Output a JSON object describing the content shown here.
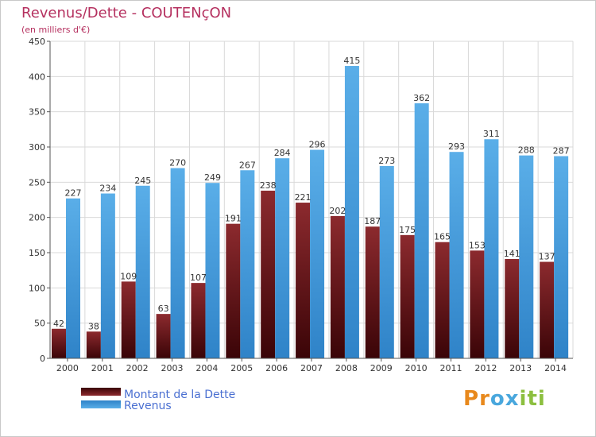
{
  "chart_data": {
    "type": "bar",
    "title": "Revenus/Dette - COUTENçON",
    "subtitle": "(en milliers d'€)",
    "categories": [
      "2000",
      "2001",
      "2002",
      "2003",
      "2004",
      "2005",
      "2006",
      "2007",
      "2008",
      "2009",
      "2010",
      "2011",
      "2012",
      "2013",
      "2014"
    ],
    "series": [
      {
        "name": "Montant de la Dette",
        "values": [
          42,
          38,
          109,
          63,
          107,
          191,
          238,
          221,
          202,
          187,
          175,
          165,
          153,
          141,
          137
        ]
      },
      {
        "name": "Revenus",
        "values": [
          227,
          234,
          245,
          270,
          249,
          267,
          284,
          296,
          415,
          273,
          362,
          293,
          311,
          288,
          287
        ]
      }
    ],
    "ylim": [
      0,
      450
    ],
    "yticks": [
      0,
      50,
      100,
      150,
      200,
      250,
      300,
      350,
      400,
      450
    ],
    "grid": true,
    "legend_position": "bottom-left"
  },
  "colors": {
    "dette": "#7a1e22",
    "dette_dark": "#3d0508",
    "revenus": "#4ba3e3",
    "revenus_dark": "#2e7fc4",
    "title": "#b5305f",
    "grid": "#d9d9d9"
  },
  "brand": {
    "letters": [
      "P",
      "r",
      "o",
      "x",
      "i",
      "t",
      "i"
    ],
    "letter_colors": [
      "#e8891d",
      "#e8891d",
      "#49a7dd",
      "#49a7dd",
      "#8cbf3f",
      "#8cbf3f",
      "#8cbf3f"
    ]
  }
}
